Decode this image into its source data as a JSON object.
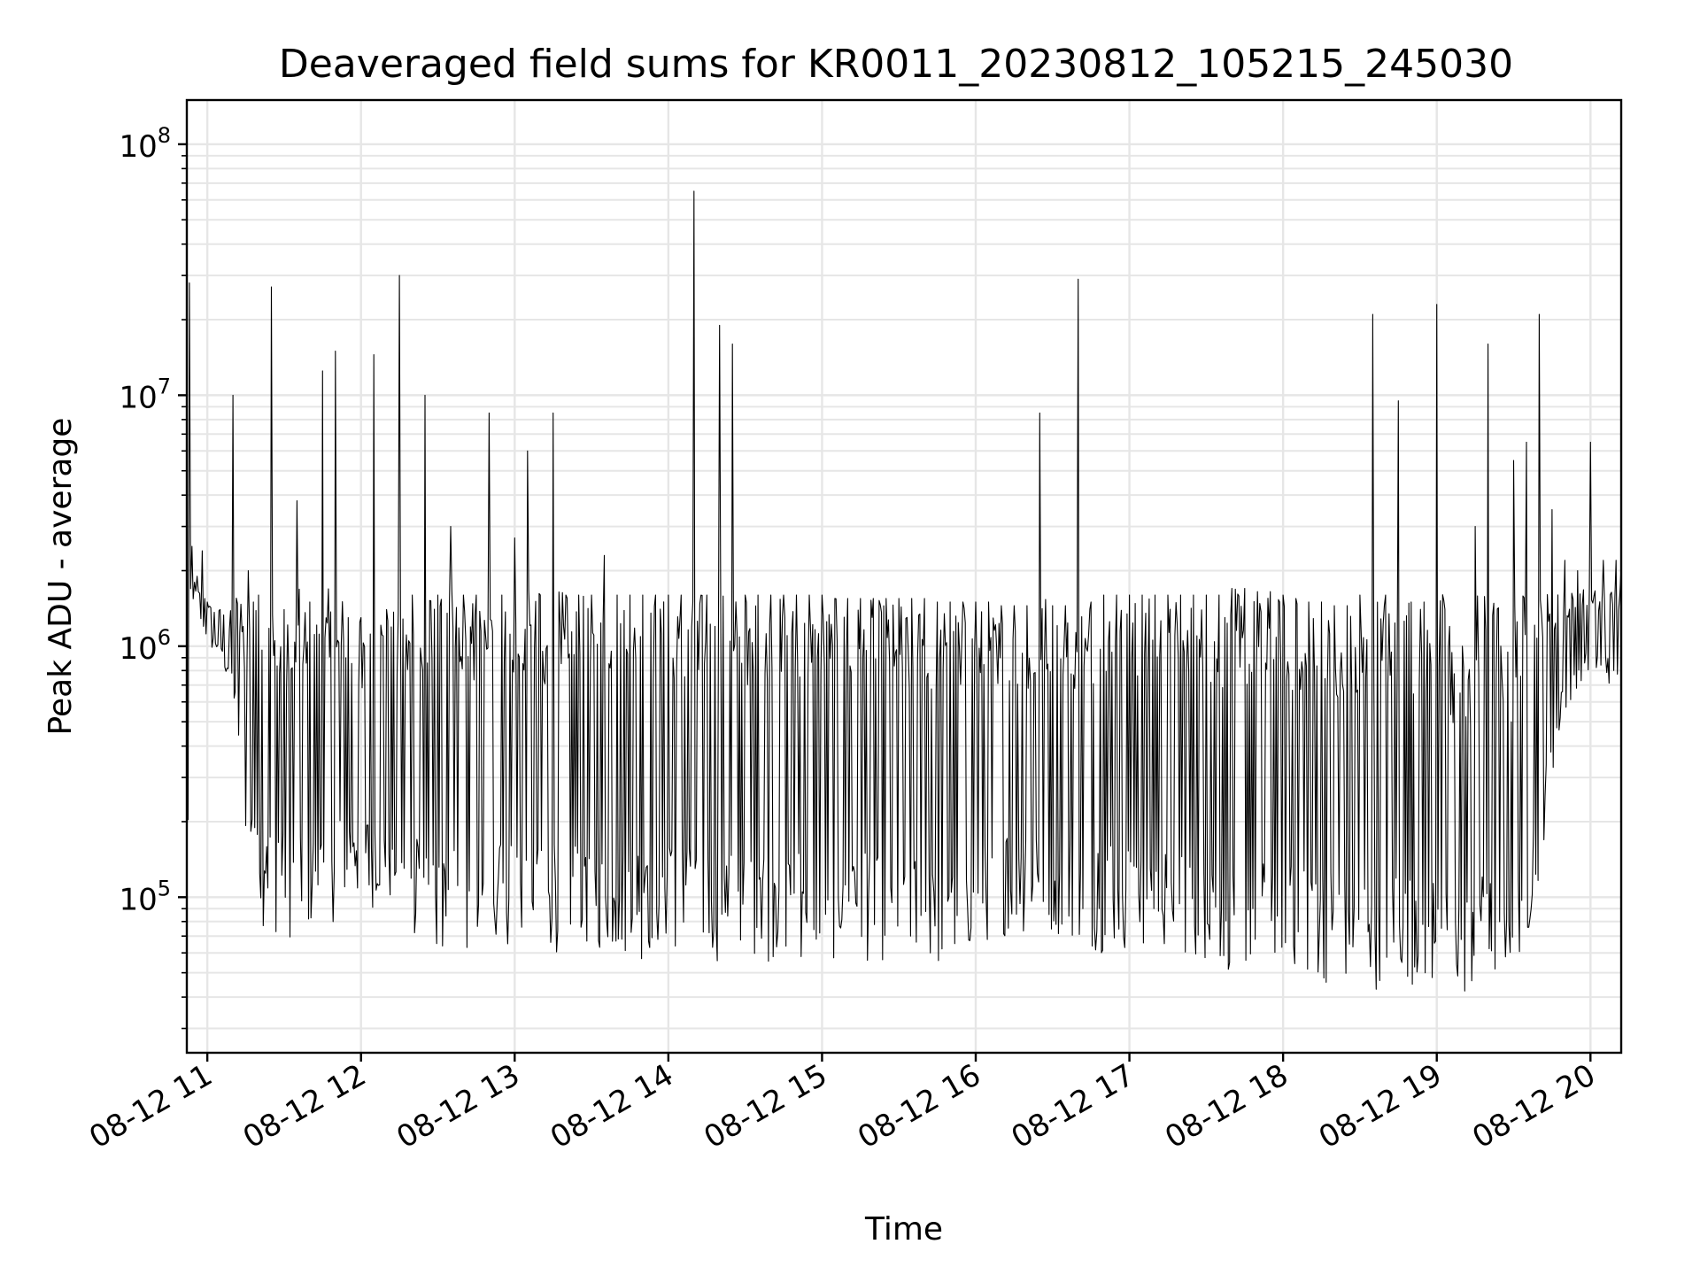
{
  "chart_data": {
    "type": "line",
    "title": "Deaveraged field sums for KR0011_20230812_105215_245030",
    "xlabel": "Time",
    "ylabel": "Peak ADU - average",
    "y_scale": "log",
    "ylim": [
      24000,
      150000000
    ],
    "xlim": [
      "2023-08-12 10:52",
      "2023-08-12 20:12"
    ],
    "grid": true,
    "line_color": "#000000",
    "grid_color": "#e6e6e6",
    "x_ticks": [
      {
        "t": "2023-08-12 11:00",
        "label": "08-12 11"
      },
      {
        "t": "2023-08-12 12:00",
        "label": "08-12 12"
      },
      {
        "t": "2023-08-12 13:00",
        "label": "08-12 13"
      },
      {
        "t": "2023-08-12 14:00",
        "label": "08-12 14"
      },
      {
        "t": "2023-08-12 15:00",
        "label": "08-12 15"
      },
      {
        "t": "2023-08-12 16:00",
        "label": "08-12 16"
      },
      {
        "t": "2023-08-12 17:00",
        "label": "08-12 17"
      },
      {
        "t": "2023-08-12 18:00",
        "label": "08-12 18"
      },
      {
        "t": "2023-08-12 19:00",
        "label": "08-12 19"
      },
      {
        "t": "2023-08-12 20:00",
        "label": "08-12 20"
      }
    ],
    "y_ticks": [
      {
        "v": 100000,
        "base": "10",
        "exp": "5"
      },
      {
        "v": 1000000,
        "base": "10",
        "exp": "6"
      },
      {
        "v": 10000000,
        "base": "10",
        "exp": "7"
      },
      {
        "v": 100000000,
        "base": "10",
        "exp": "8"
      }
    ],
    "series": [
      {
        "x": [
          "10:52",
          "10:53",
          "10:54",
          "10:55",
          "10:56",
          "10:58",
          "11:00",
          "11:05",
          "11:10",
          "11:14",
          "11:16",
          "11:18",
          "11:20",
          "11:25",
          "11:30",
          "11:35",
          "11:40",
          "11:45",
          "11:50",
          "11:55",
          "12:00",
          "12:05",
          "12:10",
          "12:15",
          "12:20",
          "12:25",
          "12:30",
          "12:35",
          "12:40",
          "12:45",
          "12:50",
          "12:55",
          "13:00",
          "13:05",
          "13:10",
          "13:15",
          "13:20",
          "13:25",
          "13:30",
          "13:35",
          "13:40",
          "13:45",
          "13:50",
          "13:55",
          "14:00",
          "14:05",
          "14:10",
          "14:15",
          "14:20",
          "14:25",
          "14:30",
          "14:35",
          "14:40",
          "14:45",
          "14:50",
          "14:55",
          "15:00",
          "15:05",
          "15:10",
          "15:15",
          "15:20",
          "15:25",
          "15:30",
          "15:35",
          "15:40",
          "15:45",
          "15:50",
          "15:55",
          "16:00",
          "16:05",
          "16:10",
          "16:15",
          "16:20",
          "16:25",
          "16:30",
          "16:35",
          "16:40",
          "16:45",
          "16:50",
          "16:55",
          "17:00",
          "17:05",
          "17:10",
          "17:15",
          "17:20",
          "17:25",
          "17:30",
          "17:35",
          "17:40",
          "17:45",
          "17:50",
          "17:55",
          "18:00",
          "18:05",
          "18:10",
          "18:15",
          "18:20",
          "18:25",
          "18:30",
          "18:35",
          "18:40",
          "18:45",
          "18:50",
          "18:55",
          "19:00",
          "19:05",
          "19:10",
          "19:15",
          "19:20",
          "19:25",
          "19:30",
          "19:35",
          "19:40",
          "19:45",
          "19:50",
          "19:55",
          "20:00",
          "20:05",
          "20:10",
          "20:12"
        ],
        "high": [
          400000,
          28000000,
          2500000,
          1800000,
          1900000,
          2400000,
          1500000,
          1400000,
          10000000,
          1200000,
          2000000,
          1500000,
          1600000,
          27000000,
          1400000,
          3800000,
          1500000,
          12500000,
          15000000,
          1300000,
          1300000,
          14500000,
          1400000,
          30000000,
          1600000,
          10000000,
          1600000,
          3000000,
          1600000,
          1600000,
          8500000,
          1600000,
          2700000,
          6000000,
          1600000,
          8500000,
          1600000,
          1600000,
          1600000,
          2300000,
          1600000,
          1600000,
          1600000,
          1600000,
          1600000,
          1600000,
          65000000,
          1600000,
          19000000,
          16000000,
          1600000,
          1600000,
          1600000,
          1600000,
          1600000,
          1600000,
          1600000,
          1550000,
          1550000,
          1550000,
          1550000,
          1550000,
          1550000,
          1550000,
          1550000,
          1500000,
          1500000,
          1500000,
          1500000,
          1500000,
          1450000,
          1450000,
          1450000,
          8500000,
          1450000,
          1450000,
          29000000,
          1500000,
          1600000,
          1600000,
          1600000,
          1600000,
          1600000,
          1600000,
          1600000,
          1600000,
          1600000,
          1600000,
          1700000,
          1700000,
          1650000,
          1650000,
          1600000,
          1550000,
          1500000,
          1500000,
          1450000,
          1450000,
          1600000,
          21000000,
          1600000,
          9500000,
          1500000,
          1500000,
          23000000,
          1200000,
          1000000,
          3000000,
          16000000,
          1000000,
          5500000,
          6500000,
          21000000,
          3500000,
          2200000,
          2000000,
          6500000,
          2200000,
          2200000,
          2100000
        ],
        "low": [
          170000,
          180000,
          900000,
          1000000,
          1200000,
          1200000,
          1000000,
          900000,
          600000,
          200000,
          150000,
          100000,
          80000,
          70000,
          70000,
          65000,
          70000,
          75000,
          80000,
          90000,
          90000,
          90000,
          90000,
          80000,
          70000,
          60000,
          60000,
          60000,
          60000,
          60000,
          60000,
          60000,
          60000,
          60000,
          60000,
          60000,
          60000,
          60000,
          60000,
          60000,
          55000,
          55000,
          55000,
          60000,
          60000,
          60000,
          60000,
          55000,
          55000,
          55000,
          55000,
          55000,
          55000,
          55000,
          55000,
          55000,
          55000,
          55000,
          55000,
          55000,
          55000,
          55000,
          50000,
          50000,
          50000,
          50000,
          50000,
          55000,
          60000,
          65000,
          70000,
          70000,
          70000,
          70000,
          70000,
          70000,
          65000,
          60000,
          60000,
          60000,
          60000,
          60000,
          60000,
          60000,
          60000,
          55000,
          55000,
          50000,
          50000,
          50000,
          50000,
          55000,
          55000,
          50000,
          45000,
          45000,
          45000,
          42000,
          40000,
          42000,
          45000,
          45000,
          45000,
          42000,
          40000,
          38000,
          38000,
          40000,
          42000,
          45000,
          55000,
          60000,
          120000,
          300000,
          500000,
          700000,
          800000,
          700000,
          700000,
          700000
        ]
      }
    ]
  }
}
